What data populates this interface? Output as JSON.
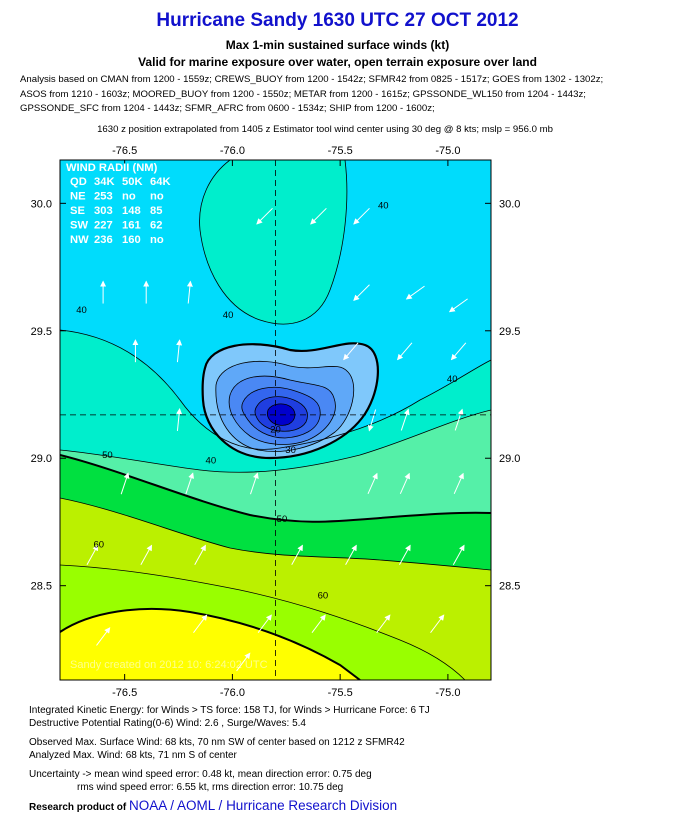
{
  "header": {
    "title": "Hurricane Sandy 1630 UTC 27 OCT 2012",
    "subtitle1": "Max 1-min sustained surface winds (kt)",
    "subtitle2": "Valid for marine exposure over water, open terrain exposure over land",
    "analysis_lines": [
      "Analysis based on CMAN from 1200 - 1559z; CREWS_BUOY from 1200 - 1542z; SFMR42 from 0825 - 1517z; GOES from 1302 - 1302z;",
      "ASOS from 1210 - 1603z; MOORED_BUOY from 1200 - 1550z; METAR from 1200 - 1615z; GPSSONDE_WL150 from 1204 - 1443z;",
      "GPSSONDE_SFC from 1204 - 1443z; SFMR_AFRC from 0600 - 1534z; SHIP from 1200 - 1600z;"
    ],
    "position_note": "1630 z position extrapolated from 1405 z Estimator tool wind center using 30 deg @ 8 kts; mslp = 956.0 mb"
  },
  "wind_radii": {
    "title": "WIND RADII (NM)",
    "header": [
      "QD",
      "34K",
      "50K",
      "64K"
    ],
    "rows": [
      [
        "NE",
        "253",
        "no",
        "no"
      ],
      [
        "SE",
        "303",
        "148",
        "85"
      ],
      [
        "SW",
        "227",
        "161",
        "62"
      ],
      [
        "NW",
        "236",
        "160",
        "no"
      ]
    ]
  },
  "watermark": "Sandy     created on 2012  10:  6:24:02 UTC",
  "chart_data": {
    "type": "contour",
    "x_ticks": [
      -76.5,
      -76.0,
      -75.5,
      -75.0
    ],
    "x_tick_labels": [
      "-76.5",
      "-76.0",
      "-75.5",
      "-75.0"
    ],
    "y_ticks": [
      28.5,
      29.0,
      29.5,
      30.0
    ],
    "y_tick_labels": [
      "28.5",
      "29.0",
      "29.5",
      "30.0"
    ],
    "xlim": [
      -76.8,
      -74.8
    ],
    "ylim": [
      28.13,
      30.17
    ],
    "center": {
      "lon": -75.8,
      "lat": 29.17
    },
    "fill_colors": {
      "0-10": "#0000cc",
      "10-15": "#1f3ee0",
      "15-20": "#3366ee",
      "20-25": "#4a88f4",
      "25-30": "#5fa8f8",
      "30-35": "#7fc8fb",
      "35-40": "#00dcfc",
      "40-45": "#00eecc",
      "45-50": "#55f0a8",
      "50-55": "#00e040",
      "55-60": "#bbf000",
      "60-65": "#99ff00",
      "65-70": "#ffff00"
    },
    "contour_labels": [
      {
        "value": "40",
        "lon": -75.3,
        "lat": 29.98
      },
      {
        "value": "40",
        "lon": -76.02,
        "lat": 29.55
      },
      {
        "value": "40",
        "lon": -76.7,
        "lat": 29.57
      },
      {
        "value": "40",
        "lon": -74.98,
        "lat": 29.3
      },
      {
        "value": "40",
        "lon": -76.1,
        "lat": 28.98
      },
      {
        "value": "50",
        "lon": -76.58,
        "lat": 29.0
      },
      {
        "value": "50",
        "lon": -75.77,
        "lat": 28.75
      },
      {
        "value": "60",
        "lon": -76.62,
        "lat": 28.65
      },
      {
        "value": "60",
        "lon": -75.58,
        "lat": 28.45
      },
      {
        "value": "20",
        "lon": -75.8,
        "lat": 29.1
      },
      {
        "value": "30",
        "lon": -75.73,
        "lat": 29.02
      }
    ],
    "wind_vectors": [
      {
        "lon": -76.6,
        "lat": 29.65,
        "u": 0.0,
        "v": 1.0
      },
      {
        "lon": -76.4,
        "lat": 29.65,
        "u": 0.0,
        "v": 1.0
      },
      {
        "lon": -76.2,
        "lat": 29.65,
        "u": 0.1,
        "v": 1.0
      },
      {
        "lon": -75.4,
        "lat": 29.65,
        "u": -0.6,
        "v": -0.6
      },
      {
        "lon": -75.15,
        "lat": 29.65,
        "u": -0.7,
        "v": -0.5
      },
      {
        "lon": -74.95,
        "lat": 29.6,
        "u": -0.7,
        "v": -0.5
      },
      {
        "lon": -75.85,
        "lat": 29.95,
        "u": -0.6,
        "v": -0.6
      },
      {
        "lon": -75.6,
        "lat": 29.95,
        "u": -0.6,
        "v": -0.6
      },
      {
        "lon": -75.4,
        "lat": 29.95,
        "u": -0.6,
        "v": -0.6
      },
      {
        "lon": -76.45,
        "lat": 29.42,
        "u": 0.0,
        "v": 1.0
      },
      {
        "lon": -76.25,
        "lat": 29.42,
        "u": 0.1,
        "v": 1.0
      },
      {
        "lon": -75.45,
        "lat": 29.42,
        "u": -0.6,
        "v": -0.7
      },
      {
        "lon": -75.2,
        "lat": 29.42,
        "u": -0.6,
        "v": -0.7
      },
      {
        "lon": -74.95,
        "lat": 29.42,
        "u": -0.6,
        "v": -0.7
      },
      {
        "lon": -76.25,
        "lat": 29.15,
        "u": 0.1,
        "v": 1.0
      },
      {
        "lon": -75.35,
        "lat": 29.15,
        "u": -0.3,
        "v": -1.0
      },
      {
        "lon": -75.2,
        "lat": 29.15,
        "u": 0.3,
        "v": 0.9
      },
      {
        "lon": -74.95,
        "lat": 29.15,
        "u": 0.3,
        "v": 0.9
      },
      {
        "lon": -76.5,
        "lat": 28.9,
        "u": 0.3,
        "v": 0.9
      },
      {
        "lon": -76.2,
        "lat": 28.9,
        "u": 0.3,
        "v": 0.9
      },
      {
        "lon": -75.9,
        "lat": 28.9,
        "u": 0.3,
        "v": 0.9
      },
      {
        "lon": -75.35,
        "lat": 28.9,
        "u": 0.4,
        "v": 0.9
      },
      {
        "lon": -75.2,
        "lat": 28.9,
        "u": 0.4,
        "v": 0.9
      },
      {
        "lon": -74.95,
        "lat": 28.9,
        "u": 0.4,
        "v": 0.9
      },
      {
        "lon": -76.65,
        "lat": 28.62,
        "u": 0.5,
        "v": 0.9
      },
      {
        "lon": -76.4,
        "lat": 28.62,
        "u": 0.5,
        "v": 0.9
      },
      {
        "lon": -76.15,
        "lat": 28.62,
        "u": 0.5,
        "v": 0.9
      },
      {
        "lon": -75.7,
        "lat": 28.62,
        "u": 0.5,
        "v": 0.9
      },
      {
        "lon": -75.45,
        "lat": 28.62,
        "u": 0.5,
        "v": 0.9
      },
      {
        "lon": -75.2,
        "lat": 28.62,
        "u": 0.5,
        "v": 0.9
      },
      {
        "lon": -74.95,
        "lat": 28.62,
        "u": 0.5,
        "v": 0.9
      },
      {
        "lon": -76.15,
        "lat": 28.35,
        "u": 0.6,
        "v": 0.8
      },
      {
        "lon": -75.85,
        "lat": 28.35,
        "u": 0.6,
        "v": 0.8
      },
      {
        "lon": -75.6,
        "lat": 28.35,
        "u": 0.6,
        "v": 0.8
      },
      {
        "lon": -75.3,
        "lat": 28.35,
        "u": 0.6,
        "v": 0.8
      },
      {
        "lon": -75.05,
        "lat": 28.35,
        "u": 0.6,
        "v": 0.8
      },
      {
        "lon": -76.6,
        "lat": 28.3,
        "u": 0.6,
        "v": 0.8
      },
      {
        "lon": -75.95,
        "lat": 28.2,
        "u": 0.6,
        "v": 0.8
      }
    ]
  },
  "footer": {
    "ike_line": "Integrated Kinetic Energy: for Winds > TS force: 158 TJ, for Winds > Hurricane Force: 6 TJ",
    "dpr_line": "Destructive Potential Rating(0-6)  Wind: 2.6 , Surge/Waves: 5.4",
    "obs_line": "Observed Max. Surface Wind: 68 kts, 70 nm SW of center based on 1212 z SFMR42",
    "analyzed_line": "Analyzed Max. Wind: 68 kts, 71 nm  S of center",
    "uncert_line1": "Uncertainty -> mean wind speed error: 0.48 kt, mean direction error: 0.75 deg",
    "uncert_line2": "rms wind speed error: 6.55 kt, rms direction error: 10.75 deg",
    "research_label": "Research product of ",
    "research_org": "NOAA / AOML / Hurricane Research Division"
  }
}
